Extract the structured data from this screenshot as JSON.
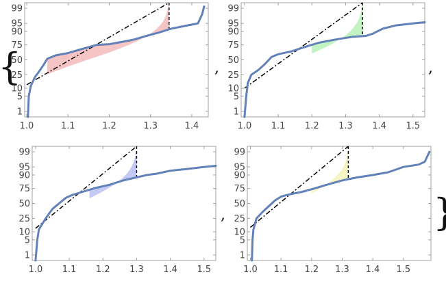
{
  "chart_data": [
    {
      "type": "line",
      "scale": "probit",
      "y_ticks": [
        "1",
        "5",
        "10",
        "25",
        "50",
        "75",
        "90",
        "95",
        "99"
      ],
      "x_ticks": [
        "1.0",
        "1.1",
        "1.2",
        "1.3",
        "1.4"
      ],
      "xlim": [
        0.995,
        1.44
      ],
      "colors": {
        "curve": "#6281b8",
        "fill": "#f5c4c4",
        "reference": "#000000"
      },
      "series": [
        {
          "x": [
            1.003,
            1.005,
            1.01,
            1.02,
            1.03,
            1.04,
            1.05,
            1.07,
            1.1,
            1.13,
            1.17,
            1.2,
            1.23,
            1.26,
            1.29,
            1.32,
            1.35,
            1.39,
            1.415,
            1.425,
            1.43
          ],
          "y": [
            0.5,
            5,
            12,
            22,
            30,
            40,
            52,
            58,
            62,
            68,
            75,
            76,
            79,
            82,
            86,
            89,
            92,
            94,
            95,
            98,
            99.2
          ]
        }
      ],
      "reference_line": {
        "x": [
          1.0,
          1.345
        ],
        "y": [
          13,
          99.5
        ]
      },
      "shaded_from_x": 1.05
    },
    {
      "type": "line",
      "scale": "probit",
      "y_ticks": [
        "1",
        "5",
        "10",
        "25",
        "50",
        "75",
        "90",
        "95",
        "99"
      ],
      "x_ticks": [
        "1.0",
        "1.1",
        "1.2",
        "1.3",
        "1.4",
        "1.5"
      ],
      "xlim": [
        0.99,
        1.535
      ],
      "colors": {
        "curve": "#6281b8",
        "fill": "#c3f2c3",
        "reference": "#000000"
      },
      "series": [
        {
          "x": [
            1.0,
            1.005,
            1.01,
            1.02,
            1.04,
            1.06,
            1.08,
            1.1,
            1.14,
            1.18,
            1.22,
            1.27,
            1.32,
            1.36,
            1.38,
            1.41,
            1.45,
            1.5,
            1.535
          ],
          "y": [
            0.5,
            5,
            15,
            25,
            32,
            42,
            55,
            60,
            65,
            72,
            78,
            82,
            85,
            86,
            88,
            92,
            94,
            95,
            95.5
          ]
        }
      ],
      "reference_line": {
        "x": [
          1.0,
          1.35
        ],
        "y": [
          10,
          99.5
        ]
      },
      "shaded_from_x": 1.2
    },
    {
      "type": "line",
      "scale": "probit",
      "y_ticks": [
        "1",
        "5",
        "10",
        "25",
        "50",
        "75",
        "90",
        "95",
        "99"
      ],
      "x_ticks": [
        "1.0",
        "1.1",
        "1.2",
        "1.3",
        "1.4",
        "1.5"
      ],
      "xlim": [
        0.99,
        1.535
      ],
      "colors": {
        "curve": "#6281b8",
        "fill": "#c5caf5",
        "reference": "#000000"
      },
      "series": [
        {
          "x": [
            1.0,
            1.005,
            1.01,
            1.03,
            1.05,
            1.07,
            1.09,
            1.11,
            1.14,
            1.18,
            1.22,
            1.26,
            1.3,
            1.33,
            1.36,
            1.4,
            1.45,
            1.5,
            1.535
          ],
          "y": [
            0.5,
            5,
            12,
            25,
            40,
            50,
            60,
            65,
            70,
            76,
            80,
            85,
            88,
            90,
            91,
            93,
            94,
            95,
            95.5
          ]
        }
      ],
      "reference_line": {
        "x": [
          1.0,
          1.3
        ],
        "y": [
          13,
          99.5
        ]
      },
      "shaded_from_x": 1.16
    },
    {
      "type": "line",
      "scale": "probit",
      "y_ticks": [
        "1",
        "5",
        "10",
        "25",
        "50",
        "75",
        "90",
        "95",
        "99"
      ],
      "x_ticks": [
        "1.0",
        "1.1",
        "1.2",
        "1.3",
        "1.4",
        "1.5"
      ],
      "xlim": [
        0.99,
        1.59
      ],
      "colors": {
        "curve": "#6281b8",
        "fill": "#f6f5c3",
        "reference": "#000000"
      },
      "series": [
        {
          "x": [
            1.005,
            1.007,
            1.01,
            1.02,
            1.04,
            1.06,
            1.08,
            1.1,
            1.13,
            1.17,
            1.21,
            1.25,
            1.3,
            1.35,
            1.4,
            1.45,
            1.5,
            1.55,
            1.57,
            1.585
          ],
          "y": [
            0.5,
            5,
            12,
            25,
            35,
            45,
            55,
            62,
            66,
            70,
            75,
            80,
            85,
            88,
            90,
            92,
            95,
            96,
            97,
            99
          ]
        }
      ],
      "reference_line": {
        "x": [
          1.0,
          1.32
        ],
        "y": [
          14,
          99.5
        ]
      },
      "shaded_from_x": 1.2
    }
  ],
  "punctuation": {
    "open_brace": "{",
    "close_brace": "}",
    "comma": ","
  }
}
